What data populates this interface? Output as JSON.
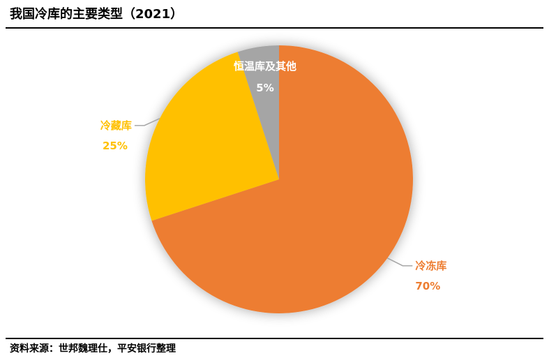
{
  "title": "我国冷库的主要类型（2021）",
  "source": "资料来源：世邦魏理仕，平安银行整理",
  "chart_data": {
    "type": "pie",
    "title": "我国冷库的主要类型（2021）",
    "slices": [
      {
        "label": "冷冻库",
        "value": 70,
        "value_text": "70%",
        "color": "#ED7D31"
      },
      {
        "label": "冷藏库",
        "value": 25,
        "value_text": "25%",
        "color": "#FFC000"
      },
      {
        "label": "恒温库及其他",
        "value": 5,
        "value_text": "5%",
        "color": "#A5A5A5"
      }
    ]
  }
}
